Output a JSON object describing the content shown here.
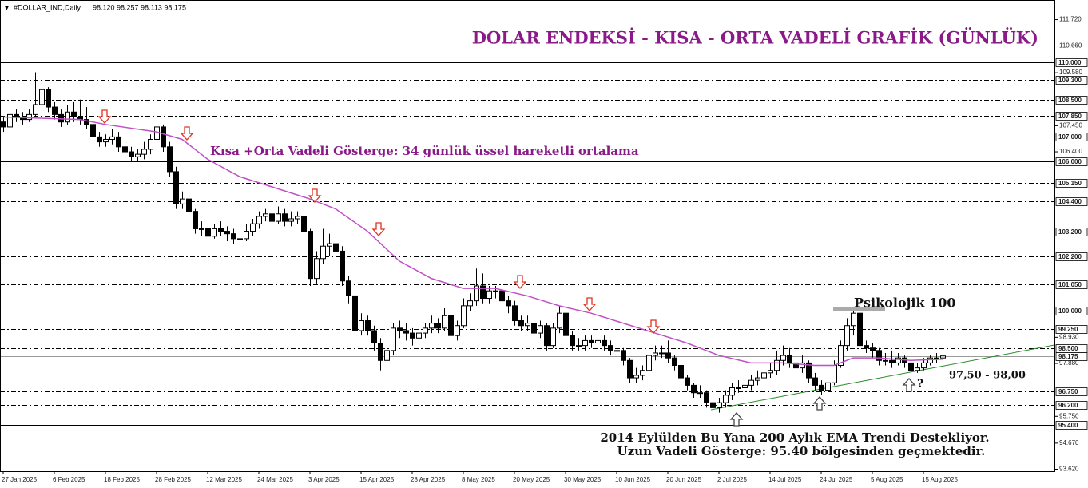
{
  "chart_data": {
    "type": "candlestick",
    "title": "DOLAR ENDEKSİ - KISA - ORTA VADELİ GRAFİK (GÜNLÜK)",
    "symbol": "#DOLLAR_IND,Daily",
    "quote": "98.120 98.257 98.113 98.175",
    "annotations": {
      "ema": "Kısa +Orta Vadeli Gösterge: 34 günlük üssel hareketli ortalama",
      "psychological": "Psikolojik 100",
      "zone": "97,50 - 98,00",
      "question": "?",
      "note1": "2014 Eylülden Bu Yana 200 Aylık EMA Trendi Destekliyor.",
      "note2": "Uzun Vadeli Gösterge: 95.40 bölgesinden geçmektedir."
    },
    "ylim": [
      93.54,
      112.51
    ],
    "yticks": [
      {
        "value": 111.72,
        "label": "111.720"
      },
      {
        "value": 110.66,
        "label": "110.660"
      },
      {
        "value": 109.58,
        "label": "109.580"
      },
      {
        "value": 107.45,
        "label": "107.450"
      },
      {
        "value": 106.4,
        "label": "106.400"
      },
      {
        "value": 98.93,
        "label": "98.930"
      },
      {
        "value": 97.88,
        "label": "97.880"
      },
      {
        "value": 95.75,
        "label": "95.750"
      },
      {
        "value": 94.67,
        "label": "94.670"
      },
      {
        "value": 93.62,
        "label": "93.620"
      }
    ],
    "levels": [
      {
        "value": 110,
        "label": "110.000",
        "line": "solid"
      },
      {
        "value": 109.3,
        "label": "109.300",
        "line": "dashed"
      },
      {
        "value": 108.5,
        "label": "108.500",
        "line": "dashed"
      },
      {
        "value": 107.85,
        "label": "107.850",
        "line": "dashed"
      },
      {
        "value": 107,
        "label": "107.000",
        "line": "dashed"
      },
      {
        "value": 106,
        "label": "106.000",
        "line": "solid"
      },
      {
        "value": 105.15,
        "label": "105.150",
        "line": "dashed"
      },
      {
        "value": 104.4,
        "label": "104.400",
        "line": "dashed"
      },
      {
        "value": 103.2,
        "label": "103.200",
        "line": "dashed"
      },
      {
        "value": 102.2,
        "label": "102.200",
        "line": "dashed"
      },
      {
        "value": 101.05,
        "label": "101.050",
        "line": "dashed"
      },
      {
        "value": 100,
        "label": "100.000",
        "line": "dashed"
      },
      {
        "value": 99.25,
        "label": "99.250",
        "line": "dashed"
      },
      {
        "value": 98.5,
        "label": "98.500",
        "line": "dashed"
      },
      {
        "value": 98.175,
        "label": "98.175",
        "line": "price"
      },
      {
        "value": 96.75,
        "label": "96.750",
        "line": "dashed"
      },
      {
        "value": 96.2,
        "label": "96.200",
        "line": "dashed"
      },
      {
        "value": 95.4,
        "label": "95.400",
        "line": "solid"
      }
    ],
    "categories": [
      "27 Jan 2025",
      null,
      null,
      null,
      null,
      null,
      null,
      null,
      "6 Feb 2025",
      null,
      null,
      null,
      null,
      null,
      null,
      null,
      "18 Feb 2025",
      null,
      null,
      null,
      null,
      null,
      null,
      null,
      "28 Feb 2025",
      null,
      null,
      null,
      null,
      null,
      null,
      null,
      "12 Mar 2025",
      null,
      null,
      null,
      null,
      null,
      null,
      null,
      "24 Mar 2025",
      null,
      null,
      null,
      null,
      null,
      null,
      null,
      "3 Apr 2025",
      null,
      null,
      null,
      null,
      null,
      null,
      null,
      "15 Apr 2025",
      null,
      null,
      null,
      null,
      null,
      null,
      null,
      "28 Apr 2025",
      null,
      null,
      null,
      null,
      null,
      null,
      null,
      "8 May 2025",
      null,
      null,
      null,
      null,
      null,
      null,
      null,
      "20 May 2025",
      null,
      null,
      null,
      null,
      null,
      null,
      null,
      "30 May 2025",
      null,
      null,
      null,
      null,
      null,
      null,
      null,
      "10 Jun 2025",
      null,
      null,
      null,
      null,
      null,
      null,
      null,
      "20 Jun 2025",
      null,
      null,
      null,
      null,
      null,
      null,
      null,
      "2 Jul 2025",
      null,
      null,
      null,
      null,
      null,
      null,
      null,
      "14 Jul 2025",
      null,
      null,
      null,
      null,
      null,
      null,
      null,
      "24 Jul 2025",
      null,
      null,
      null,
      null,
      null,
      null,
      null,
      "5 Aug 2025",
      null,
      null,
      null,
      null,
      null,
      null,
      null,
      "15 Aug 2025",
      null,
      null,
      null
    ],
    "ohlc": [
      [
        107.6,
        107.8,
        107.2,
        107.4
      ],
      [
        107.4,
        108.0,
        107.3,
        107.9
      ],
      [
        107.9,
        108.1,
        107.6,
        107.8
      ],
      [
        107.8,
        108.0,
        107.5,
        107.7
      ],
      [
        107.7,
        108.1,
        107.6,
        107.9
      ],
      [
        107.9,
        109.6,
        107.8,
        108.3
      ],
      [
        108.3,
        109.2,
        108.1,
        108.9
      ],
      [
        108.9,
        109.0,
        108.0,
        108.2
      ],
      [
        108.2,
        108.4,
        107.7,
        107.9
      ],
      [
        107.9,
        108.1,
        107.4,
        107.6
      ],
      [
        107.6,
        108.3,
        107.5,
        108.0
      ],
      [
        108.0,
        108.4,
        107.6,
        107.8
      ],
      [
        107.8,
        108.5,
        107.5,
        107.7
      ],
      [
        107.7,
        108.2,
        107.3,
        107.5
      ],
      [
        107.5,
        107.7,
        106.8,
        107.0
      ],
      [
        107.0,
        107.2,
        106.6,
        106.8
      ],
      [
        106.8,
        107.1,
        106.6,
        106.9
      ],
      [
        106.9,
        107.3,
        106.7,
        107.0
      ],
      [
        107.0,
        107.2,
        106.4,
        106.6
      ],
      [
        106.6,
        106.8,
        106.2,
        106.4
      ],
      [
        106.4,
        106.6,
        106.0,
        106.2
      ],
      [
        106.2,
        106.5,
        106.0,
        106.3
      ],
      [
        106.3,
        106.8,
        106.1,
        106.5
      ],
      [
        106.5,
        107.1,
        106.3,
        106.9
      ],
      [
        106.9,
        107.6,
        106.7,
        107.4
      ],
      [
        107.4,
        107.5,
        106.4,
        106.6
      ],
      [
        106.6,
        106.8,
        105.4,
        105.6
      ],
      [
        105.6,
        105.8,
        104.1,
        104.3
      ],
      [
        104.3,
        104.8,
        104.1,
        104.5
      ],
      [
        104.5,
        104.6,
        103.8,
        104.0
      ],
      [
        104.0,
        104.1,
        103.1,
        103.3
      ],
      [
        103.3,
        103.6,
        103.0,
        103.3
      ],
      [
        103.3,
        103.5,
        102.8,
        103.0
      ],
      [
        103.0,
        103.5,
        102.9,
        103.3
      ],
      [
        103.3,
        103.6,
        103.0,
        103.2
      ],
      [
        103.2,
        103.4,
        102.8,
        103.1
      ],
      [
        103.1,
        103.3,
        102.7,
        102.9
      ],
      [
        102.9,
        103.3,
        102.7,
        102.9
      ],
      [
        102.9,
        103.5,
        102.8,
        103.2
      ],
      [
        103.2,
        103.7,
        103.0,
        103.5
      ],
      [
        103.5,
        104.0,
        103.3,
        103.8
      ],
      [
        103.8,
        104.1,
        103.6,
        103.9
      ],
      [
        103.9,
        104.1,
        103.4,
        103.6
      ],
      [
        103.6,
        104.2,
        103.5,
        103.9
      ],
      [
        103.9,
        104.1,
        103.4,
        103.6
      ],
      [
        103.6,
        104.0,
        103.4,
        103.7
      ],
      [
        103.7,
        104.0,
        103.5,
        103.8
      ],
      [
        103.8,
        104.0,
        102.9,
        103.2
      ],
      [
        103.2,
        103.3,
        101.0,
        101.3
      ],
      [
        101.3,
        102.4,
        101.1,
        102.1
      ],
      [
        102.1,
        103.3,
        101.9,
        102.6
      ],
      [
        102.6,
        103.1,
        102.2,
        102.7
      ],
      [
        102.7,
        102.9,
        102.0,
        102.4
      ],
      [
        102.4,
        102.6,
        101.0,
        101.2
      ],
      [
        101.2,
        101.4,
        100.3,
        100.6
      ],
      [
        100.6,
        100.8,
        98.9,
        99.2
      ],
      [
        99.2,
        99.9,
        99.0,
        99.6
      ],
      [
        99.6,
        99.8,
        99.0,
        99.2
      ],
      [
        99.2,
        99.4,
        98.4,
        98.7
      ],
      [
        98.7,
        98.9,
        97.6,
        98.0
      ],
      [
        98.0,
        98.7,
        97.8,
        98.4
      ],
      [
        98.4,
        99.5,
        98.2,
        99.3
      ],
      [
        99.3,
        99.6,
        98.9,
        99.2
      ],
      [
        99.2,
        99.5,
        98.8,
        99.1
      ],
      [
        99.1,
        99.3,
        98.6,
        98.9
      ],
      [
        98.9,
        99.3,
        98.7,
        99.1
      ],
      [
        99.1,
        99.5,
        98.9,
        99.3
      ],
      [
        99.3,
        99.8,
        99.1,
        99.5
      ],
      [
        99.5,
        99.7,
        99.1,
        99.3
      ],
      [
        99.3,
        100.1,
        99.2,
        99.8
      ],
      [
        99.8,
        100.0,
        98.8,
        99.0
      ],
      [
        99.0,
        99.6,
        98.8,
        99.4
      ],
      [
        99.4,
        100.5,
        99.3,
        100.2
      ],
      [
        100.2,
        100.7,
        100.0,
        100.4
      ],
      [
        100.4,
        101.7,
        100.2,
        101.0
      ],
      [
        101.0,
        101.5,
        100.3,
        100.5
      ],
      [
        100.5,
        101.0,
        100.3,
        100.8
      ],
      [
        100.8,
        101.0,
        100.5,
        100.8
      ],
      [
        100.8,
        101.0,
        100.2,
        100.4
      ],
      [
        100.4,
        100.6,
        99.9,
        100.2
      ],
      [
        100.2,
        100.4,
        99.4,
        99.6
      ],
      [
        99.6,
        99.8,
        99.2,
        99.4
      ],
      [
        99.4,
        99.8,
        99.2,
        99.5
      ],
      [
        99.5,
        99.7,
        98.9,
        99.1
      ],
      [
        99.1,
        99.6,
        98.9,
        99.4
      ],
      [
        99.4,
        99.5,
        98.4,
        98.6
      ],
      [
        98.6,
        99.5,
        98.5,
        99.3
      ],
      [
        99.3,
        100.2,
        99.1,
        99.9
      ],
      [
        99.9,
        100.0,
        98.8,
        99.0
      ],
      [
        99.0,
        99.2,
        98.4,
        98.6
      ],
      [
        98.6,
        98.9,
        98.4,
        98.6
      ],
      [
        98.6,
        99.0,
        98.4,
        98.8
      ],
      [
        98.8,
        99.0,
        98.5,
        98.7
      ],
      [
        98.7,
        99.1,
        98.5,
        98.8
      ],
      [
        98.8,
        99.0,
        98.4,
        98.6
      ],
      [
        98.6,
        98.8,
        98.2,
        98.4
      ],
      [
        98.4,
        98.6,
        98.1,
        98.4
      ],
      [
        98.4,
        98.5,
        97.8,
        98.0
      ],
      [
        98.0,
        98.1,
        97.1,
        97.3
      ],
      [
        97.3,
        97.7,
        97.1,
        97.4
      ],
      [
        97.4,
        97.8,
        97.2,
        97.6
      ],
      [
        97.6,
        98.4,
        97.5,
        98.2
      ],
      [
        98.2,
        98.6,
        98.0,
        98.3
      ],
      [
        98.3,
        98.6,
        98.1,
        98.3
      ],
      [
        98.3,
        98.8,
        97.9,
        98.1
      ],
      [
        98.1,
        98.2,
        97.6,
        97.8
      ],
      [
        97.8,
        97.9,
        97.1,
        97.3
      ],
      [
        97.3,
        97.4,
        96.8,
        97.0
      ],
      [
        97.0,
        97.1,
        96.5,
        96.7
      ],
      [
        96.7,
        97.0,
        96.5,
        96.7
      ],
      [
        96.7,
        96.8,
        96.1,
        96.3
      ],
      [
        96.3,
        96.4,
        95.9,
        96.1
      ],
      [
        96.1,
        96.5,
        95.9,
        96.3
      ],
      [
        96.3,
        96.8,
        96.1,
        96.6
      ],
      [
        96.6,
        97.1,
        96.4,
        96.9
      ],
      [
        96.9,
        97.2,
        96.7,
        96.9
      ],
      [
        96.9,
        97.3,
        96.7,
        97.0
      ],
      [
        97.0,
        97.4,
        96.8,
        97.2
      ],
      [
        97.2,
        97.6,
        97.0,
        97.3
      ],
      [
        97.3,
        97.8,
        97.1,
        97.5
      ],
      [
        97.5,
        97.9,
        97.3,
        97.6
      ],
      [
        97.6,
        98.4,
        97.4,
        98.0
      ],
      [
        98.0,
        98.6,
        97.8,
        98.2
      ],
      [
        98.2,
        98.5,
        97.7,
        97.9
      ],
      [
        97.9,
        98.1,
        97.5,
        97.7
      ],
      [
        97.7,
        98.2,
        97.5,
        97.9
      ],
      [
        97.9,
        98.0,
        97.1,
        97.3
      ],
      [
        97.3,
        97.5,
        96.8,
        97.0
      ],
      [
        97.0,
        97.2,
        96.6,
        96.8
      ],
      [
        96.8,
        97.3,
        96.6,
        97.1
      ],
      [
        97.1,
        98.0,
        97.0,
        97.8
      ],
      [
        97.8,
        98.8,
        97.7,
        98.6
      ],
      [
        98.6,
        99.7,
        98.4,
        99.4
      ],
      [
        99.4,
        100.0,
        99.0,
        99.9
      ],
      [
        99.9,
        100.0,
        98.4,
        98.6
      ],
      [
        98.6,
        98.8,
        98.3,
        98.5
      ],
      [
        98.5,
        98.7,
        98.1,
        98.4
      ],
      [
        98.4,
        98.5,
        97.8,
        98.0
      ],
      [
        98.0,
        98.3,
        97.8,
        98.0
      ],
      [
        98.0,
        98.4,
        97.7,
        97.9
      ],
      [
        97.9,
        98.3,
        97.8,
        98.1
      ],
      [
        98.1,
        98.2,
        97.7,
        97.9
      ],
      [
        97.9,
        98.0,
        97.5,
        97.6
      ],
      [
        97.6,
        97.9,
        97.5,
        97.7
      ],
      [
        97.7,
        98.1,
        97.6,
        97.9
      ],
      [
        97.9,
        98.2,
        97.8,
        98.1
      ],
      [
        98.1,
        98.3,
        97.9,
        98.1
      ],
      [
        98.1,
        98.26,
        98.11,
        98.18
      ]
    ],
    "ema": {
      "color": "#c04fc8",
      "x": [
        0,
        12,
        16,
        24,
        28,
        32,
        37,
        48,
        52,
        57,
        62,
        67,
        72,
        77,
        82,
        87,
        92,
        97,
        102,
        107,
        112,
        117,
        122,
        127,
        130,
        133,
        137,
        142,
        147
      ],
      "values": [
        107.8,
        107.7,
        107.5,
        107.2,
        106.9,
        106.1,
        105.4,
        104.5,
        104.1,
        103.2,
        102.0,
        101.3,
        100.9,
        100.9,
        100.6,
        100.2,
        99.9,
        99.5,
        99.1,
        98.7,
        98.2,
        97.9,
        97.9,
        97.8,
        97.8,
        98.1,
        98.1,
        98.0,
        98.05
      ]
    }
  }
}
